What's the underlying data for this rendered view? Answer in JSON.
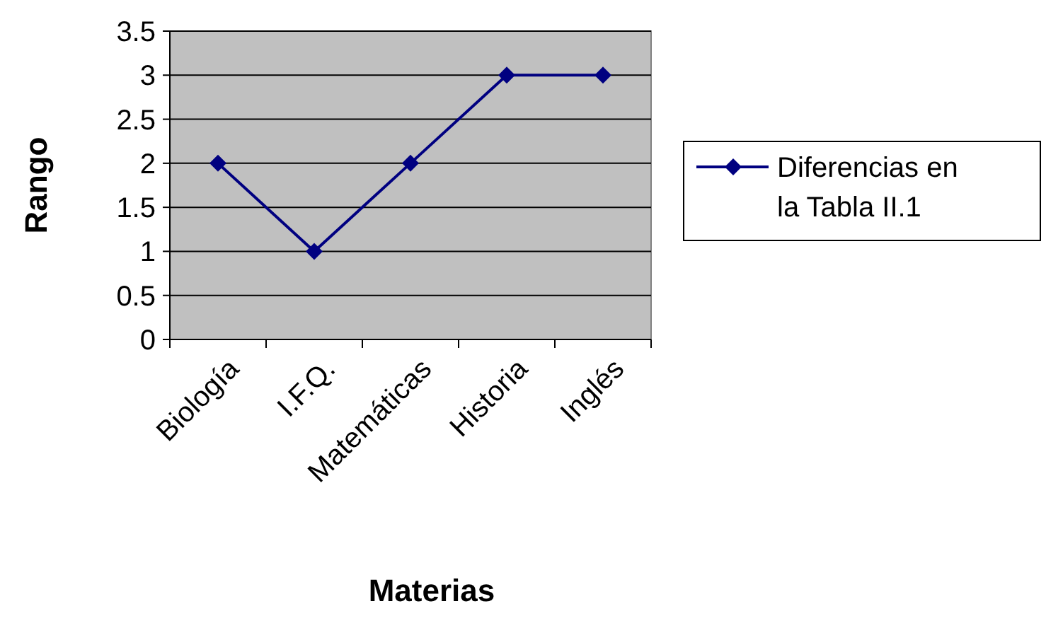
{
  "chart_data": {
    "type": "line",
    "xlabel": "Materias",
    "ylabel": "Rango",
    "categories": [
      "Biología",
      "I.F.Q.",
      "Matemáticas",
      "Historia",
      "Inglés"
    ],
    "series": [
      {
        "name": "Diferencias en la Tabla II.1",
        "color": "#000080",
        "values": [
          2,
          1,
          2,
          3,
          3
        ]
      }
    ],
    "ylim": [
      0,
      3.5
    ],
    "yticks": [
      0,
      0.5,
      1,
      1.5,
      2,
      2.5,
      3,
      3.5
    ],
    "grid": "y",
    "legend": "right",
    "marker": "diamond",
    "line_style": "solid"
  }
}
